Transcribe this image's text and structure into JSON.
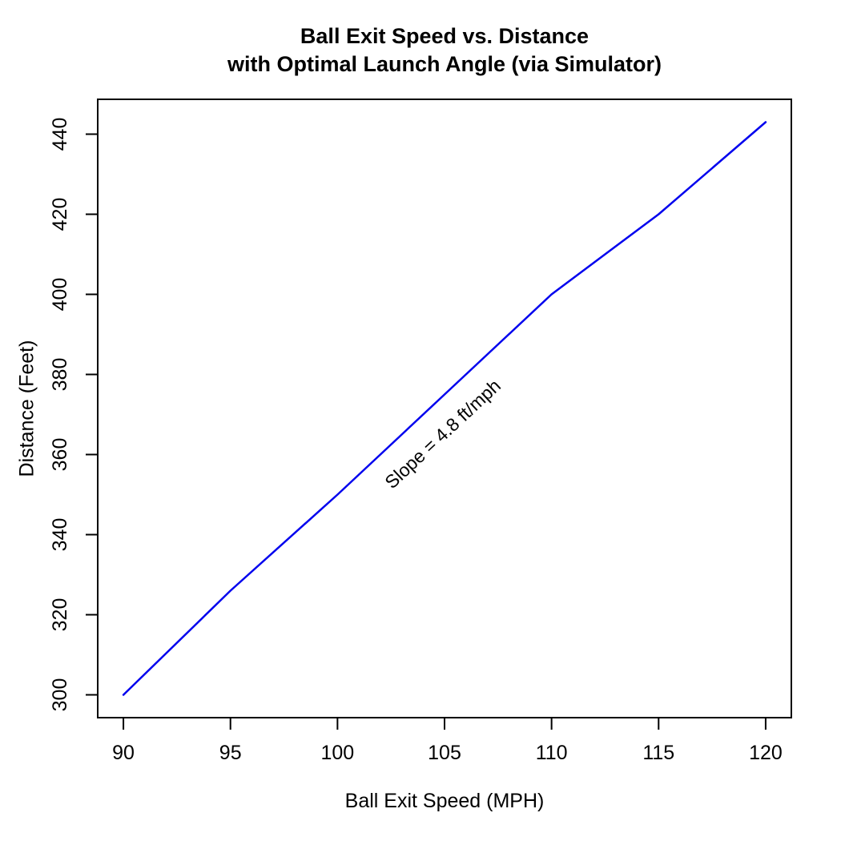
{
  "chart_data": {
    "type": "line",
    "title": "Ball Exit Speed vs. Distance",
    "subtitle": "with Optimal Launch Angle (via Simulator)",
    "xlabel": "Ball Exit Speed (MPH)",
    "ylabel": "Distance (Feet)",
    "x": [
      90,
      95,
      100,
      105,
      110,
      115,
      120
    ],
    "y": [
      300,
      326,
      350,
      375,
      400,
      420,
      443
    ],
    "xticks": [
      90,
      95,
      100,
      105,
      110,
      115,
      120
    ],
    "yticks": [
      300,
      320,
      340,
      360,
      380,
      400,
      420,
      440
    ],
    "xlim": [
      88.8,
      121.2
    ],
    "ylim": [
      294.3,
      448.7
    ],
    "grid": false,
    "legend": "none",
    "line_color": "#0000EE",
    "axis_color": "#000000",
    "slope_ft_per_mph": 4.8,
    "annotation": {
      "text": "Slope = 4.8 ft/mph",
      "x": 104.9,
      "y": 364.5,
      "rotation_deg": -43
    }
  }
}
